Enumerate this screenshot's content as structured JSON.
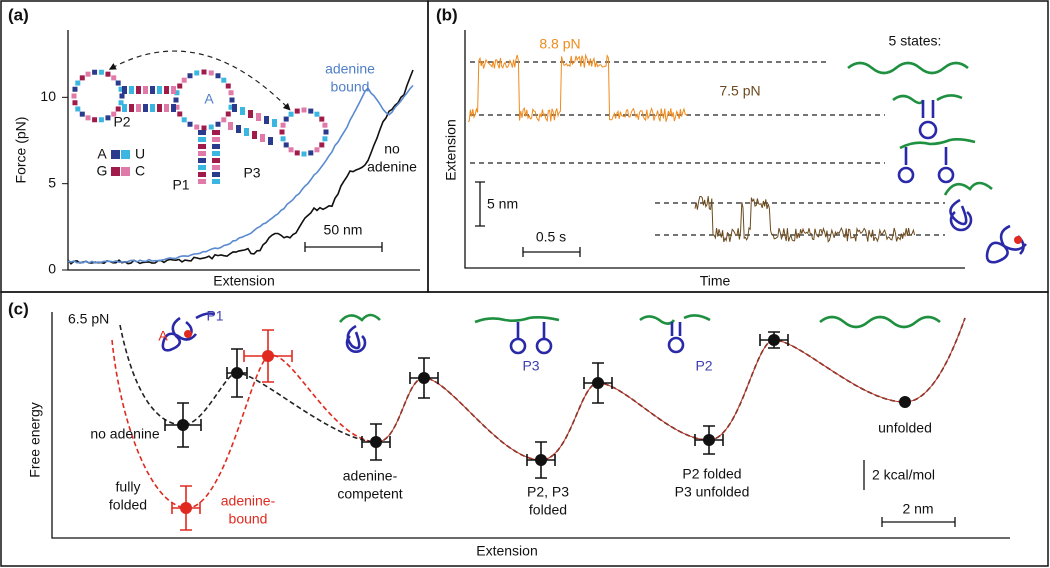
{
  "panels": {
    "a": {
      "label": "(a)",
      "y_label": "Force (pN)",
      "x_label": "Extension",
      "ylim": [
        0,
        13.9
      ],
      "yticks": [
        0,
        5,
        10
      ],
      "bound_lines": [
        "adenine",
        "bound"
      ],
      "unbound_lines": [
        "no",
        "adenine"
      ],
      "scale_bar": "50 nm",
      "helix_labels": [
        "P2",
        "P1",
        "P3"
      ],
      "ligand": "A",
      "legend_pairs": [
        [
          "A",
          "U"
        ],
        [
          "G",
          "C"
        ]
      ]
    },
    "b": {
      "label": "(b)",
      "y_label": "Extension",
      "x_label": "Time",
      "trace_high": "8.8 pN",
      "trace_low": "7.5 pN",
      "states_title": "5 states:",
      "y_scale_bar": "5 nm",
      "x_scale_bar": "0.5 s"
    },
    "c": {
      "label": "(c)",
      "force": "6.5 pN",
      "y_label": "Free energy",
      "x_label": "Extension",
      "icon_labels": {
        "ligand": "A",
        "p1": "P1",
        "p3": "P3",
        "p2": "P2"
      },
      "states": {
        "no_adenine": "no adenine",
        "fully_folded": [
          "fully",
          "folded"
        ],
        "adenine_bound": [
          "adenine-",
          "bound"
        ],
        "competent": [
          "adenine-",
          "competent"
        ],
        "p2p3": [
          "P2, P3",
          "folded"
        ],
        "p2only": [
          "P2 folded",
          "P3 unfolded"
        ],
        "unfolded": "unfolded"
      },
      "energy_bar": "2 kcal/mol",
      "distance_bar": "2 nm"
    }
  }
}
